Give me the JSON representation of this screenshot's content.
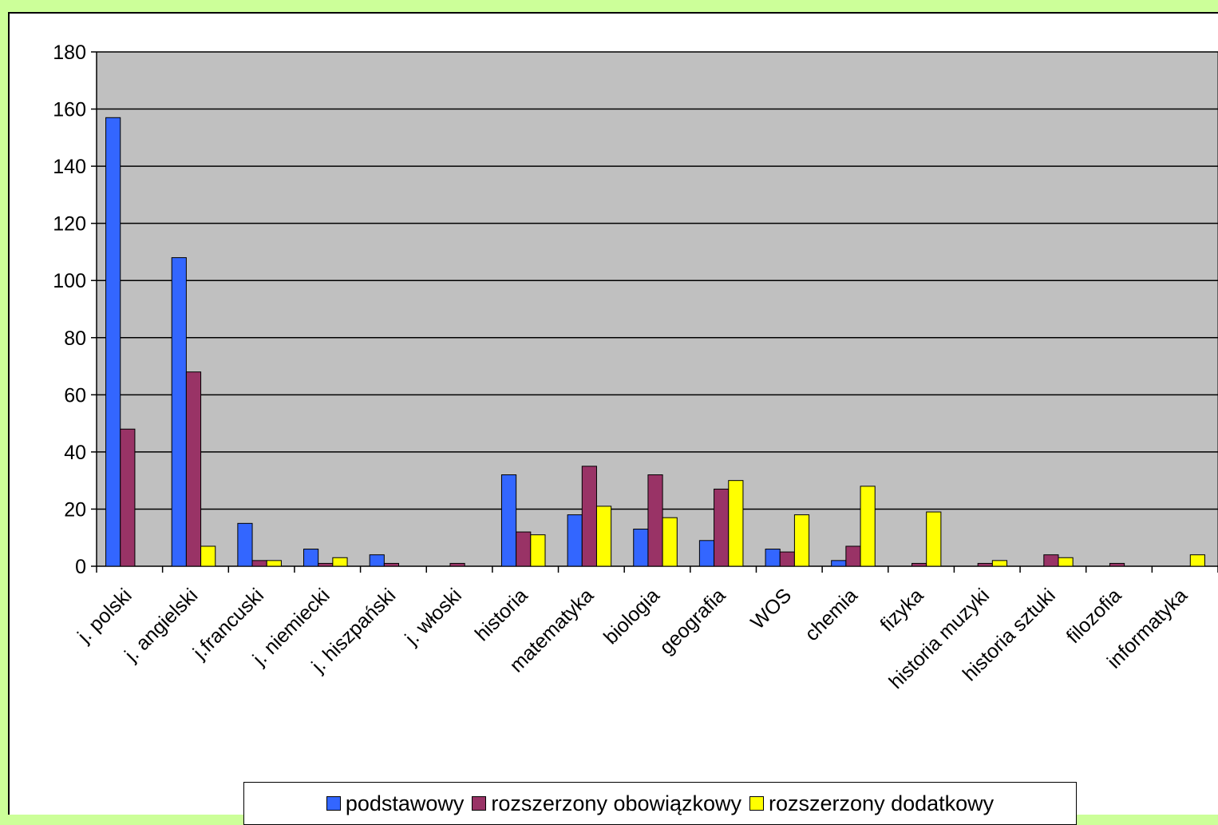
{
  "chart_data": {
    "type": "bar",
    "categories": [
      "j. polski",
      "j. angielski",
      "j.francuski",
      "j. niemiecki",
      "j. hiszpański",
      "j. włoski",
      "historia",
      "matematyka",
      "biologia",
      "geografia",
      "WOS",
      "chemia",
      "fizyka",
      "historia muzyki",
      "historia sztuki",
      "filozofia",
      "informatyka"
    ],
    "series": [
      {
        "name": "podstawowy",
        "color": "#3366ff",
        "values": [
          157,
          108,
          15,
          6,
          4,
          0,
          32,
          18,
          13,
          9,
          6,
          2,
          0,
          0,
          0,
          0,
          0
        ]
      },
      {
        "name": "rozszerzony obowiązkowy",
        "color": "#993366",
        "values": [
          48,
          68,
          2,
          1,
          1,
          1,
          12,
          35,
          32,
          27,
          5,
          7,
          1,
          1,
          4,
          1,
          0
        ]
      },
      {
        "name": "rozszerzony dodatkowy",
        "color": "#ffff00",
        "values": [
          0,
          7,
          2,
          3,
          0,
          0,
          11,
          21,
          17,
          30,
          18,
          28,
          19,
          2,
          3,
          0,
          4
        ]
      }
    ],
    "yticks": [
      "0",
      "20",
      "40",
      "60",
      "80",
      "100",
      "120",
      "140",
      "160",
      "180"
    ],
    "ylim": [
      0,
      180
    ],
    "grid": true,
    "plot_background": "#c0c0c0",
    "legend_position": "bottom"
  }
}
